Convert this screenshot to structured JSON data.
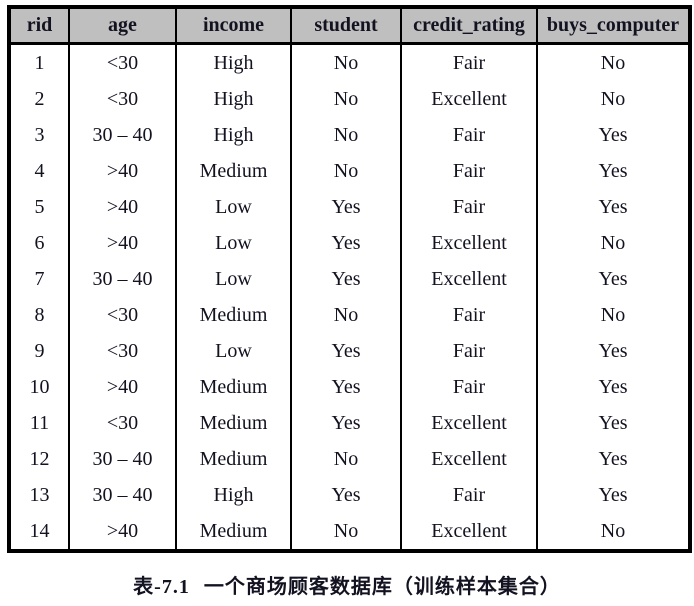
{
  "table": {
    "headers": [
      "rid",
      "age",
      "income",
      "student",
      "credit_rating",
      "buys_computer"
    ],
    "rows": [
      [
        "1",
        "<30",
        "High",
        "No",
        "Fair",
        "No"
      ],
      [
        "2",
        "<30",
        "High",
        "No",
        "Excellent",
        "No"
      ],
      [
        "3",
        "30 – 40",
        "High",
        "No",
        "Fair",
        "Yes"
      ],
      [
        "4",
        ">40",
        "Medium",
        "No",
        "Fair",
        "Yes"
      ],
      [
        "5",
        ">40",
        "Low",
        "Yes",
        "Fair",
        "Yes"
      ],
      [
        "6",
        ">40",
        "Low",
        "Yes",
        "Excellent",
        "No"
      ],
      [
        "7",
        "30 – 40",
        "Low",
        "Yes",
        "Excellent",
        "Yes"
      ],
      [
        "8",
        "<30",
        "Medium",
        "No",
        "Fair",
        "No"
      ],
      [
        "9",
        "<30",
        "Low",
        "Yes",
        "Fair",
        "Yes"
      ],
      [
        "10",
        ">40",
        "Medium",
        "Yes",
        "Fair",
        "Yes"
      ],
      [
        "11",
        "<30",
        "Medium",
        "Yes",
        "Excellent",
        "Yes"
      ],
      [
        "12",
        "30 – 40",
        "Medium",
        "No",
        "Excellent",
        "Yes"
      ],
      [
        "13",
        "30 – 40",
        "High",
        "Yes",
        "Fair",
        "Yes"
      ],
      [
        "14",
        ">40",
        "Medium",
        "No",
        "Excellent",
        "No"
      ]
    ],
    "colors": {
      "header_bg": "#bfbfbf",
      "border": "#000000",
      "text": "#121220"
    }
  },
  "caption": {
    "label": "表-7.1",
    "title": "一个商场顾客数据库（训练样本集合）"
  },
  "chart_data": {
    "type": "table",
    "title": "表-7.1 一个商场顾客数据库（训练样本集合）",
    "categories": [
      "rid",
      "age",
      "income",
      "student",
      "credit_rating",
      "buys_computer"
    ],
    "rows": [
      [
        "1",
        "<30",
        "High",
        "No",
        "Fair",
        "No"
      ],
      [
        "2",
        "<30",
        "High",
        "No",
        "Excellent",
        "No"
      ],
      [
        "3",
        "30 – 40",
        "High",
        "No",
        "Fair",
        "Yes"
      ],
      [
        "4",
        ">40",
        "Medium",
        "No",
        "Fair",
        "Yes"
      ],
      [
        "5",
        ">40",
        "Low",
        "Yes",
        "Fair",
        "Yes"
      ],
      [
        "6",
        ">40",
        "Low",
        "Yes",
        "Excellent",
        "No"
      ],
      [
        "7",
        "30 – 40",
        "Low",
        "Yes",
        "Excellent",
        "Yes"
      ],
      [
        "8",
        "<30",
        "Medium",
        "No",
        "Fair",
        "No"
      ],
      [
        "9",
        "<30",
        "Low",
        "Yes",
        "Fair",
        "Yes"
      ],
      [
        "10",
        ">40",
        "Medium",
        "Yes",
        "Fair",
        "Yes"
      ],
      [
        "11",
        "<30",
        "Medium",
        "Yes",
        "Excellent",
        "Yes"
      ],
      [
        "12",
        "30 – 40",
        "Medium",
        "No",
        "Excellent",
        "Yes"
      ],
      [
        "13",
        "30 – 40",
        "High",
        "Yes",
        "Fair",
        "Yes"
      ],
      [
        "14",
        ">40",
        "Medium",
        "No",
        "Excellent",
        "No"
      ]
    ]
  }
}
